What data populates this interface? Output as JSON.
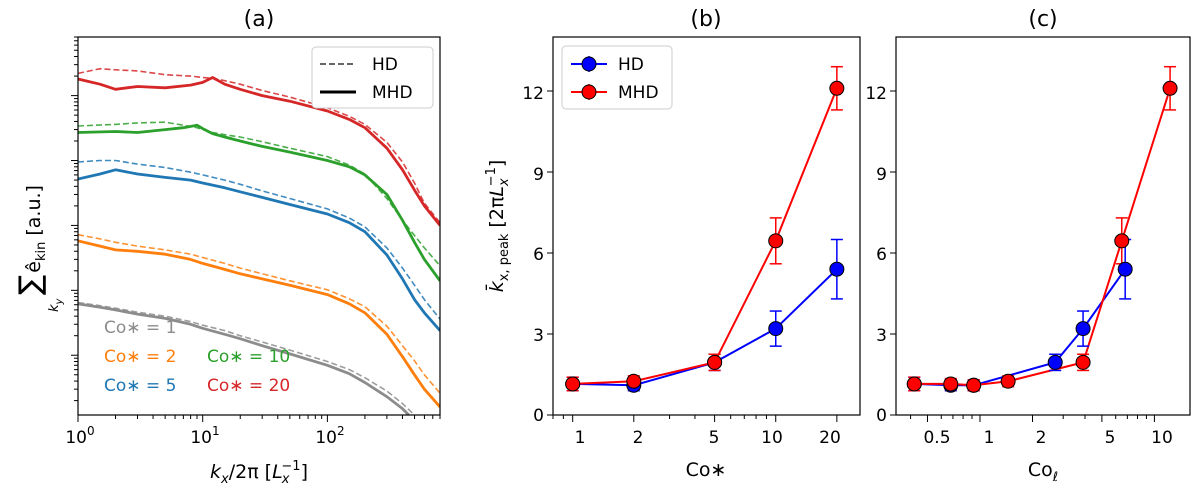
{
  "chart_data": [
    {
      "id": "a",
      "type": "line",
      "title": "(a)",
      "xlabel": "k_x/2π [L_x^-1]",
      "xlabel_parts": {
        "k": "k",
        "k_sub": "x",
        "rest": "/2π [",
        "L": "L",
        "L_sub": "x",
        "L_sup": "−1",
        "close": "]"
      },
      "ylabel": "Σ_{k_y} ê_kin [a.u.]",
      "ylabel_parts": {
        "sigma": "∑",
        "ky_k": "k",
        "ky_sub": "y",
        "ehat": "ê",
        "kin": "kin",
        "units": "[a.u.]"
      },
      "xscale": "log",
      "yscale": "log",
      "xlim": [
        1,
        800
      ],
      "ylim": [
        0.00012,
        80
      ],
      "xticks": [
        1,
        10,
        100
      ],
      "xtick_labels": [
        {
          "base": "10",
          "exp": "0"
        },
        {
          "base": "10",
          "exp": "1"
        },
        {
          "base": "10",
          "exp": "2"
        }
      ],
      "ytick_labels_shown": false,
      "legend": [
        {
          "label": "HD",
          "style": "dashed"
        },
        {
          "label": "MHD",
          "style": "solid"
        }
      ],
      "annotations": [
        {
          "text": "Co∗ = 1",
          "color": "#8c8c8c"
        },
        {
          "text": "Co∗ = 2",
          "color": "#ff7f0e"
        },
        {
          "text": "Co∗ = 10",
          "color": "#2ca02c"
        },
        {
          "text": "Co∗ = 5",
          "color": "#1f77b4"
        },
        {
          "text": "Co∗ = 20",
          "color": "#d62728"
        }
      ],
      "series": [
        {
          "name": "Co* = 20 MHD",
          "color": "#d62728",
          "style": "solid",
          "x": [
            1,
            1.5,
            2,
            3,
            5,
            8,
            10,
            12,
            15,
            20,
            30,
            50,
            100,
            150,
            200,
            300,
            400,
            500,
            600,
            800
          ],
          "y": [
            18,
            15,
            12.5,
            13.8,
            13.2,
            14.5,
            16,
            19,
            15,
            12.5,
            10,
            8.2,
            5.8,
            4.3,
            3.2,
            1.55,
            0.72,
            0.35,
            0.2,
            0.1
          ]
        },
        {
          "name": "Co* = 20 HD",
          "color": "#d62728",
          "style": "dashed",
          "x": [
            1,
            1.5,
            2,
            3,
            5,
            8,
            10,
            12,
            15,
            20,
            30,
            50,
            100,
            150,
            200,
            300,
            400,
            500,
            600,
            800
          ],
          "y": [
            22,
            26,
            25,
            24,
            21,
            20,
            19,
            18.5,
            17,
            15,
            12,
            9.5,
            6.5,
            4.8,
            3.6,
            1.9,
            0.95,
            0.45,
            0.22,
            0.11
          ]
        },
        {
          "name": "Co* = 10 MHD",
          "color": "#2ca02c",
          "style": "solid",
          "x": [
            1,
            2,
            3,
            5,
            7,
            9,
            10,
            12,
            15,
            20,
            30,
            50,
            100,
            150,
            200,
            300,
            400,
            500,
            600,
            800
          ],
          "y": [
            2.7,
            2.8,
            2.7,
            3.0,
            3.2,
            3.5,
            3.1,
            2.6,
            2.3,
            2.0,
            1.65,
            1.35,
            1.0,
            0.8,
            0.6,
            0.3,
            0.12,
            0.055,
            0.03,
            0.014
          ]
        },
        {
          "name": "Co* = 10 HD",
          "color": "#2ca02c",
          "style": "dashed",
          "x": [
            1,
            2,
            3,
            5,
            7,
            9,
            10,
            12,
            15,
            20,
            30,
            50,
            100,
            150,
            200,
            300,
            400,
            500,
            600,
            800
          ],
          "y": [
            3.4,
            3.6,
            3.8,
            3.9,
            3.5,
            3.2,
            3.0,
            2.7,
            2.5,
            2.3,
            1.95,
            1.55,
            1.15,
            0.85,
            0.62,
            0.26,
            0.12,
            0.07,
            0.045,
            0.024
          ]
        },
        {
          "name": "Co* = 5 MHD",
          "color": "#1f77b4",
          "style": "solid",
          "x": [
            1,
            1.5,
            2,
            3,
            5,
            8,
            10,
            15,
            20,
            30,
            50,
            100,
            150,
            200,
            300,
            400,
            500,
            600,
            800
          ],
          "y": [
            0.52,
            0.62,
            0.72,
            0.62,
            0.55,
            0.5,
            0.45,
            0.38,
            0.33,
            0.27,
            0.21,
            0.15,
            0.11,
            0.08,
            0.035,
            0.015,
            0.0072,
            0.0045,
            0.0024
          ]
        },
        {
          "name": "Co* = 5 HD",
          "color": "#1f77b4",
          "style": "dashed",
          "x": [
            1,
            1.5,
            2,
            3,
            5,
            8,
            10,
            15,
            20,
            30,
            50,
            100,
            150,
            200,
            300,
            400,
            500,
            600,
            800
          ],
          "y": [
            0.95,
            1.0,
            1.0,
            0.88,
            0.78,
            0.66,
            0.6,
            0.5,
            0.43,
            0.34,
            0.26,
            0.18,
            0.13,
            0.095,
            0.045,
            0.022,
            0.012,
            0.0072,
            0.0036
          ]
        },
        {
          "name": "Co* = 2 MHD",
          "color": "#ff7f0e",
          "style": "solid",
          "x": [
            1,
            1.5,
            2,
            3,
            5,
            8,
            10,
            15,
            20,
            30,
            50,
            100,
            150,
            200,
            300,
            400,
            500,
            600,
            800
          ],
          "y": [
            0.058,
            0.048,
            0.042,
            0.04,
            0.036,
            0.03,
            0.026,
            0.021,
            0.018,
            0.015,
            0.012,
            0.0086,
            0.0062,
            0.0045,
            0.0021,
            0.00095,
            0.0005,
            0.0003,
            0.00016
          ]
        },
        {
          "name": "Co* = 2 HD",
          "color": "#ff7f0e",
          "style": "dashed",
          "x": [
            1,
            1.5,
            2,
            3,
            5,
            8,
            10,
            15,
            20,
            30,
            50,
            100,
            150,
            200,
            300,
            400,
            500,
            600,
            800
          ],
          "y": [
            0.072,
            0.062,
            0.055,
            0.048,
            0.042,
            0.036,
            0.032,
            0.026,
            0.022,
            0.018,
            0.014,
            0.0102,
            0.0074,
            0.0056,
            0.0028,
            0.0014,
            0.00082,
            0.0005,
            0.00026
          ]
        },
        {
          "name": "Co* = 1 MHD",
          "color": "#8c8c8c",
          "style": "solid",
          "x": [
            1,
            1.5,
            2,
            3,
            5,
            8,
            10,
            15,
            20,
            30,
            50,
            100,
            150,
            200,
            300,
            400,
            450
          ],
          "y": [
            0.0062,
            0.0055,
            0.005,
            0.0043,
            0.0037,
            0.003,
            0.0026,
            0.0021,
            0.0018,
            0.0014,
            0.00105,
            0.0007,
            0.00052,
            0.00038,
            0.00023,
            0.00015,
            0.00012
          ]
        },
        {
          "name": "Co* = 1 HD",
          "color": "#8c8c8c",
          "style": "dashed",
          "x": [
            1,
            1.5,
            2,
            3,
            5,
            8,
            10,
            15,
            20,
            30,
            50,
            100,
            150,
            200,
            300,
            400,
            500
          ],
          "y": [
            0.0065,
            0.0058,
            0.0053,
            0.0046,
            0.004,
            0.0033,
            0.0029,
            0.0024,
            0.002,
            0.0016,
            0.0012,
            0.0008,
            0.0006,
            0.00045,
            0.00028,
            0.00018,
            0.00012
          ]
        }
      ]
    },
    {
      "id": "b",
      "type": "line",
      "title": "(b)",
      "xlabel": "Co∗",
      "ylabel": "k̄_x,peak [2πL_x^-1]",
      "ylabel_parts": {
        "k": "k̄",
        "sub": "x, peak",
        "bracket": "[2π",
        "L": "L",
        "L_sub": "x",
        "L_sup": "−1",
        "close": "]"
      },
      "xscale": "log",
      "xlim": [
        0.8,
        26
      ],
      "ylim": [
        0,
        14
      ],
      "xticks": [
        1,
        2,
        5,
        10,
        20
      ],
      "xtick_labels": [
        "1",
        "2",
        "5",
        "10",
        "20"
      ],
      "yticks": [
        0,
        3,
        6,
        9,
        12
      ],
      "ytick_labels": [
        "0",
        "3",
        "6",
        "9",
        "12"
      ],
      "legend": [
        {
          "label": "HD",
          "color": "#0000ff"
        },
        {
          "label": "MHD",
          "color": "#ff0000"
        }
      ],
      "series": [
        {
          "name": "HD",
          "color": "#0000ff",
          "x": [
            1,
            2,
            5,
            10,
            20
          ],
          "y": [
            1.15,
            1.1,
            1.95,
            3.2,
            5.4
          ],
          "err": [
            0.25,
            0.2,
            0.3,
            0.65,
            1.1
          ]
        },
        {
          "name": "MHD",
          "color": "#ff0000",
          "x": [
            1,
            2,
            5,
            10,
            20
          ],
          "y": [
            1.15,
            1.25,
            1.95,
            6.45,
            12.1
          ],
          "err": [
            0.25,
            0.2,
            0.3,
            0.85,
            0.8
          ]
        }
      ]
    },
    {
      "id": "c",
      "type": "line",
      "title": "(c)",
      "xlabel": "Co_ℓ",
      "xlabel_parts": {
        "base": "Co",
        "sub": "ℓ"
      },
      "xscale": "log",
      "xlim": [
        0.33,
        16
      ],
      "ylim": [
        0,
        14
      ],
      "xticks": [
        0.5,
        1,
        2,
        5,
        10
      ],
      "xtick_labels": [
        "0.5",
        "1",
        "2",
        "5",
        "10"
      ],
      "yticks": [
        0,
        3,
        6,
        9,
        12
      ],
      "ytick_labels": [
        "0",
        "3",
        "6",
        "9",
        "12"
      ],
      "series": [
        {
          "name": "HD",
          "color": "#0000ff",
          "x": [
            0.42,
            0.68,
            0.92,
            2.7,
            3.9,
            6.8
          ],
          "y": [
            1.15,
            1.1,
            1.1,
            1.95,
            3.2,
            5.4
          ],
          "err": [
            0.25,
            0.2,
            0.2,
            0.3,
            0.65,
            1.1
          ]
        },
        {
          "name": "MHD",
          "color": "#ff0000",
          "x": [
            0.42,
            0.68,
            0.92,
            1.45,
            3.9,
            6.5,
            12.3
          ],
          "y": [
            1.15,
            1.15,
            1.1,
            1.25,
            1.95,
            6.45,
            12.1
          ],
          "err": [
            0.25,
            0.2,
            0.2,
            0.2,
            0.3,
            0.85,
            0.8
          ]
        }
      ]
    }
  ]
}
